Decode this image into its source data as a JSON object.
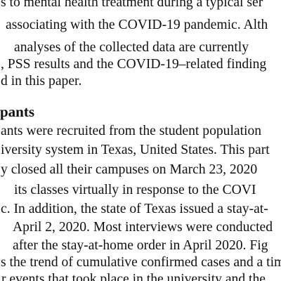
{
  "paragraph_top": {
    "lines": [
      "s to mental health treatment during a typical ser",
      "associating with the COVID-19 pandemic. Alth",
      "analyses of the collected data are currently",
      ", PSS results and the COVID-19–related finding",
      "d in this paper."
    ]
  },
  "section_heading": "pants",
  "paragraph_participants": {
    "lines": [
      "ants were recruited from the student population",
      "iversity system in Texas, United States. This part",
      "y closed all their campuses on March 23, 2020",
      "its classes virtually in response to the COVI",
      "c. In addition, the state of Texas issued a stay-at-",
      "April 2, 2020. Most interviews were conducted",
      "after the stay-at-home order in April 2020. Fig",
      "s the trend of cumulative confirmed cases and a tim",
      "r events that took place in the university and the"
    ]
  }
}
